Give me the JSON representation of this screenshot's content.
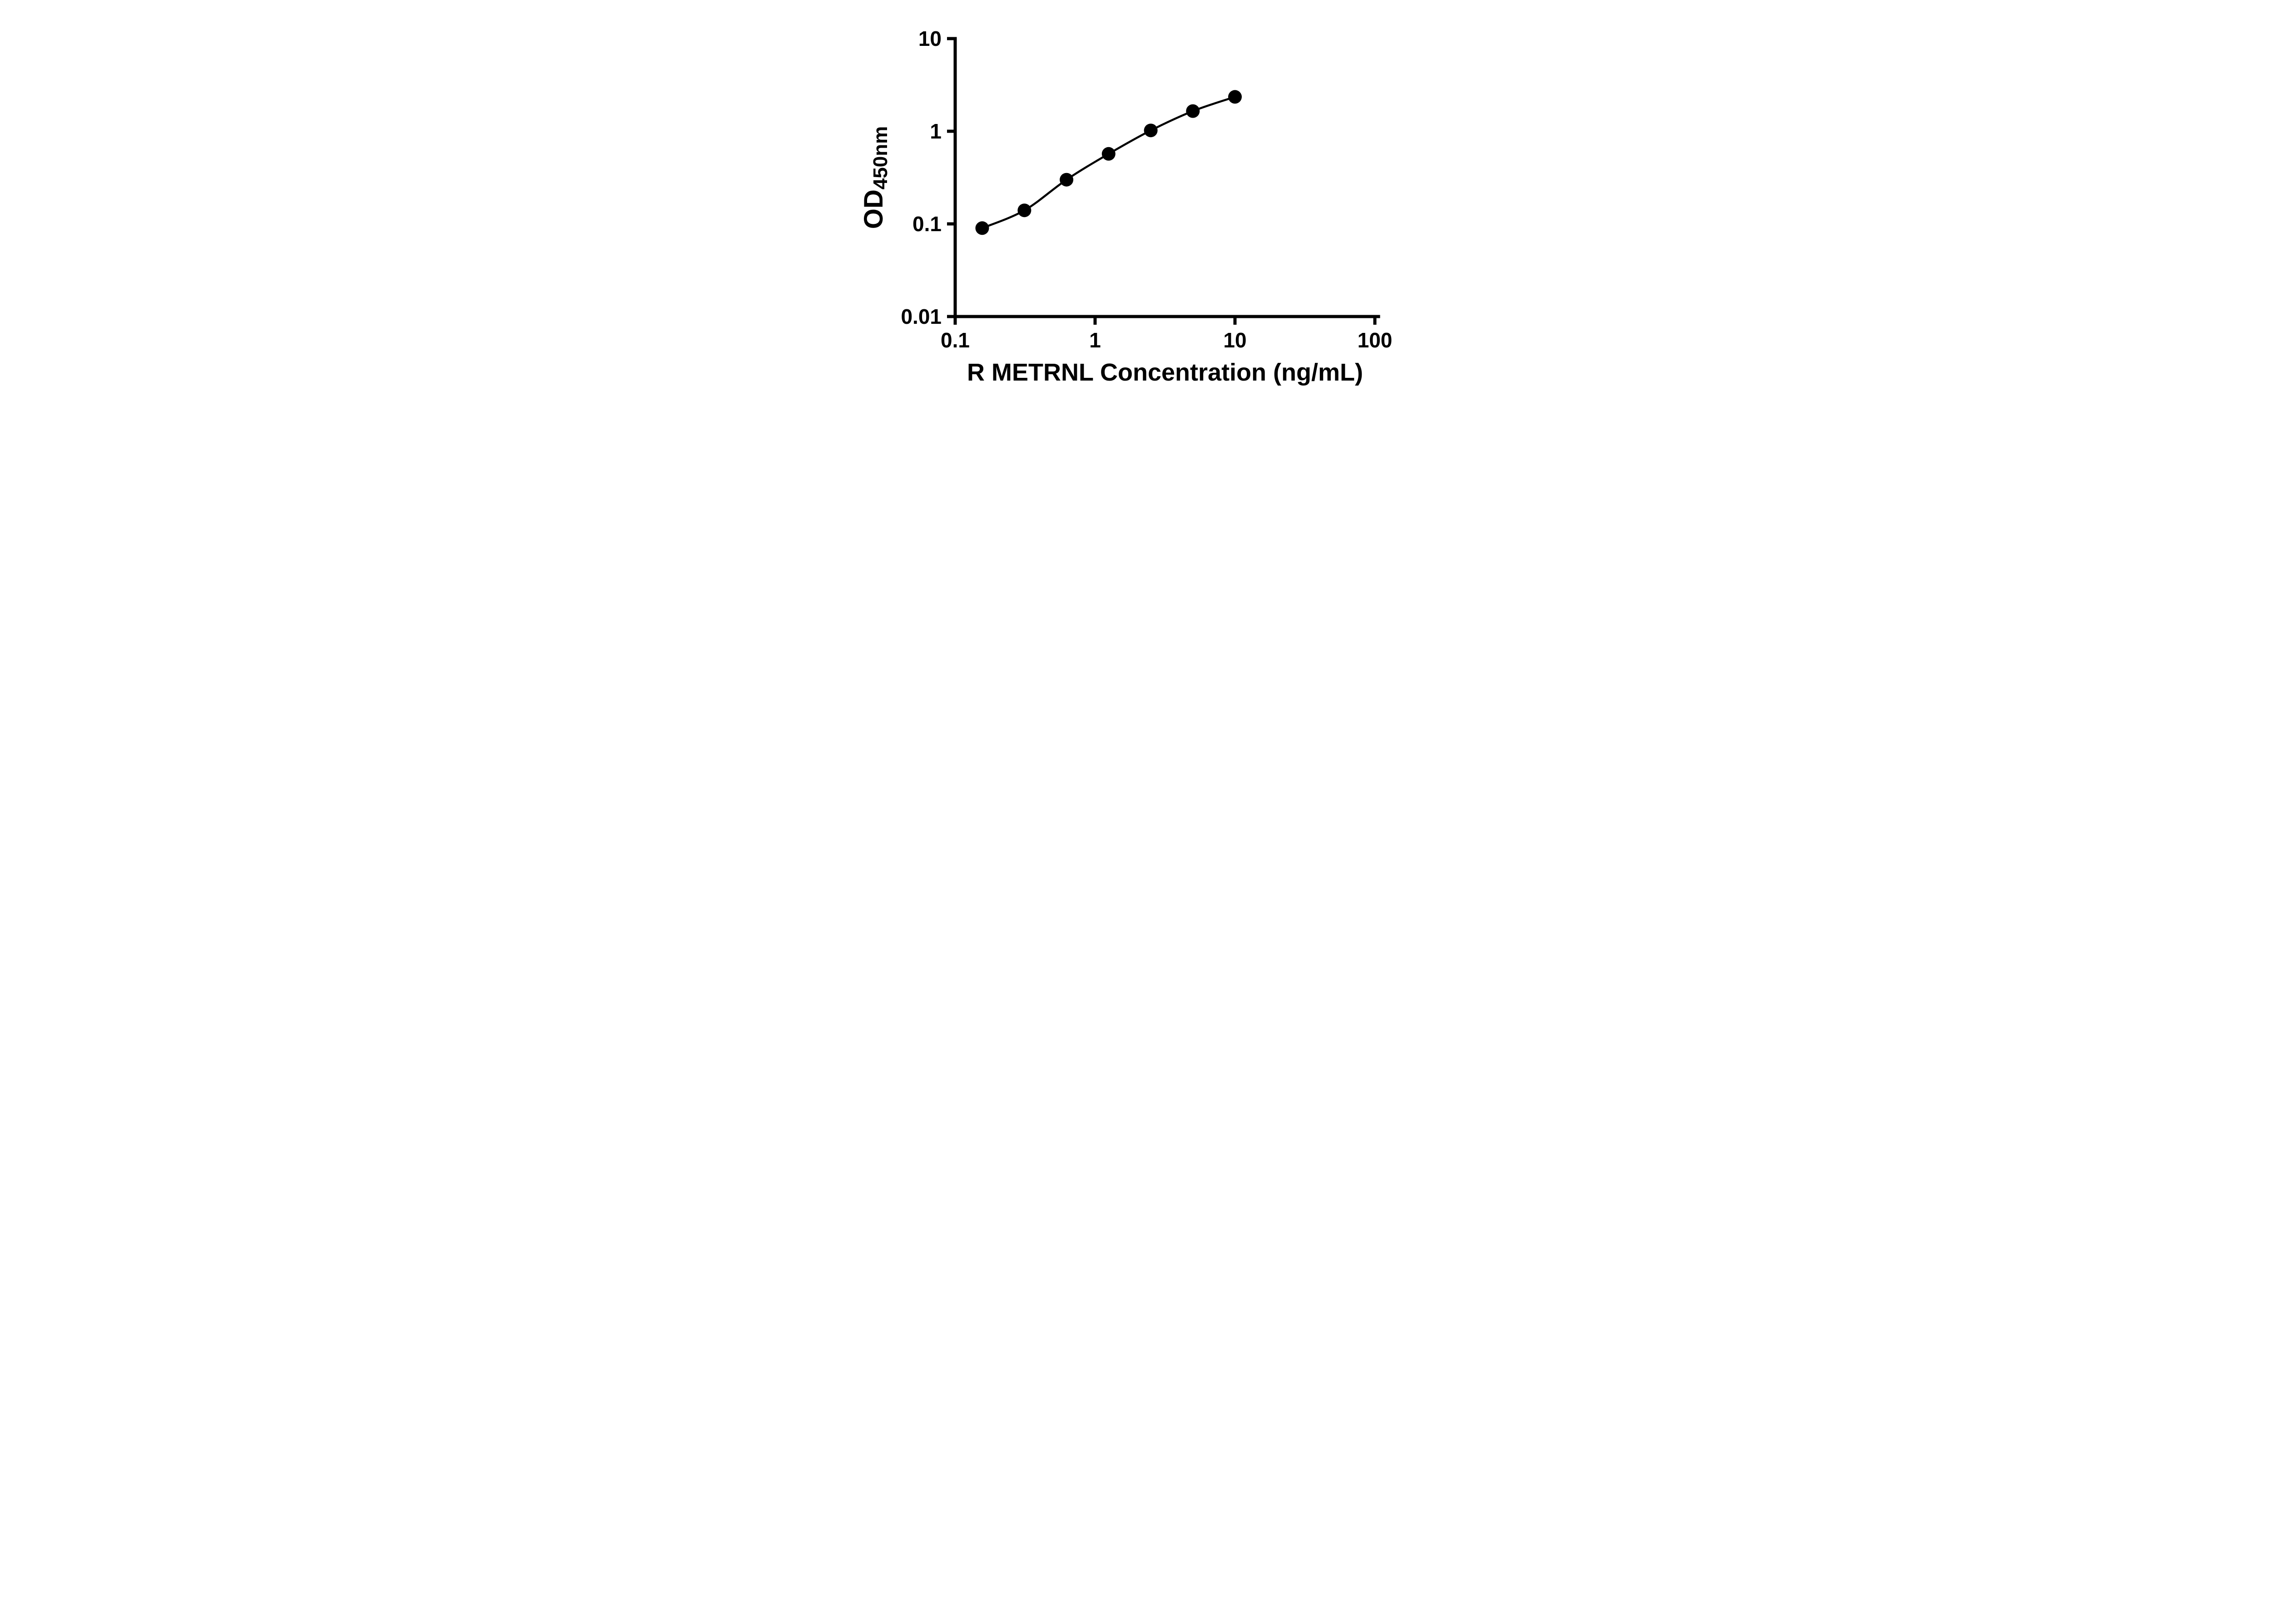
{
  "figure": {
    "background_color": "#ffffff"
  },
  "chart_data": {
    "type": "line",
    "title": "",
    "xlabel": "R METRNL Concentration (ng/mL)",
    "ylabel": "OD450nm",
    "ylabel_main": "OD",
    "ylabel_subscript": "450nm",
    "x_scale": "log10",
    "y_scale": "log10",
    "xlim": [
      0.1,
      100
    ],
    "ylim": [
      0.01,
      10
    ],
    "x_ticks": [
      0.1,
      1,
      10,
      100
    ],
    "x_tick_labels": [
      "0.1",
      "1",
      "10",
      "100"
    ],
    "y_ticks": [
      0.01,
      0.1,
      1,
      10
    ],
    "y_tick_labels": [
      "0.01",
      "0.1",
      "1",
      "10"
    ],
    "x": [
      0.156,
      0.3125,
      0.625,
      1.25,
      2.5,
      5,
      10
    ],
    "y": [
      0.09,
      0.14,
      0.3,
      0.57,
      1.02,
      1.65,
      2.35
    ],
    "marker": {
      "shape": "circle",
      "color": "#000000"
    },
    "line_color": "#000000",
    "axis_color": "#000000",
    "grid": false,
    "legend": false
  }
}
